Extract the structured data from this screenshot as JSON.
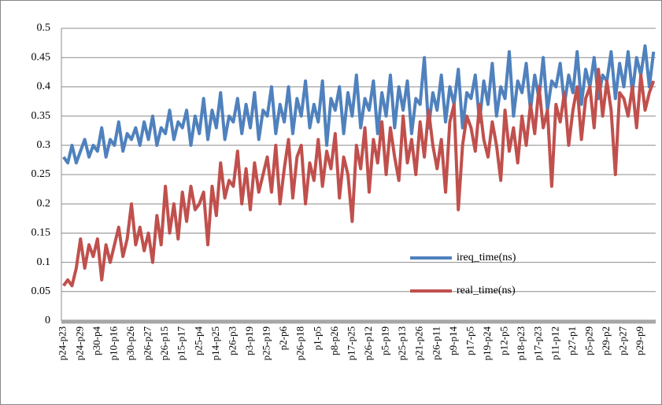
{
  "chart_data": {
    "type": "line",
    "categories": [
      "p24-p23",
      null,
      null,
      null,
      "p24-p29",
      null,
      null,
      null,
      "p30-p4",
      null,
      null,
      null,
      "p10-p16",
      null,
      null,
      null,
      "p30-p26",
      null,
      null,
      null,
      "p26-p27",
      null,
      null,
      null,
      "p26-p15",
      null,
      null,
      null,
      "p15-p17",
      null,
      null,
      null,
      "p25-p4",
      null,
      null,
      null,
      "p14-p25",
      null,
      null,
      null,
      "p26-p3",
      null,
      null,
      null,
      "p3-p19",
      null,
      null,
      null,
      "p25-p19",
      null,
      null,
      null,
      "p2-p6",
      null,
      null,
      null,
      "p26-p18",
      null,
      null,
      null,
      "p1-p5",
      null,
      null,
      null,
      "p8-p26",
      null,
      null,
      null,
      "p17-p25",
      null,
      null,
      null,
      "p26-p12",
      null,
      null,
      null,
      "p5-p19",
      null,
      null,
      null,
      "p25-p13",
      null,
      null,
      null,
      "p21-p26",
      null,
      null,
      null,
      "p26-p11",
      null,
      null,
      null,
      "p9-p14",
      null,
      null,
      null,
      "p17-p5",
      null,
      null,
      null,
      "p19-p24",
      null,
      null,
      null,
      "p12-p5",
      null,
      null,
      null,
      "p18-p23",
      null,
      null,
      null,
      "p17-p23",
      null,
      null,
      null,
      "p11-p12",
      null,
      null,
      null,
      "p27-p1",
      null,
      null,
      null,
      "p5-p29",
      null,
      null,
      null,
      "p29-p2",
      null,
      null,
      null,
      "p2-p27",
      null,
      null,
      null,
      "p29-p9",
      null,
      null,
      null
    ],
    "series": [
      {
        "name": "ireq_time(ns)",
        "color": "#4f81bd",
        "values": [
          0.28,
          0.27,
          0.3,
          0.27,
          0.29,
          0.31,
          0.28,
          0.3,
          0.29,
          0.33,
          0.28,
          0.31,
          0.3,
          0.34,
          0.29,
          0.32,
          0.31,
          0.33,
          0.3,
          0.34,
          0.31,
          0.35,
          0.3,
          0.33,
          0.32,
          0.36,
          0.31,
          0.34,
          0.33,
          0.36,
          0.3,
          0.35,
          0.32,
          0.38,
          0.31,
          0.36,
          0.33,
          0.39,
          0.31,
          0.35,
          0.34,
          0.38,
          0.32,
          0.37,
          0.33,
          0.39,
          0.31,
          0.36,
          0.35,
          0.4,
          0.32,
          0.37,
          0.34,
          0.4,
          0.32,
          0.38,
          0.35,
          0.41,
          0.33,
          0.37,
          0.34,
          0.41,
          0.3,
          0.38,
          0.36,
          0.4,
          0.32,
          0.39,
          0.35,
          0.42,
          0.33,
          0.38,
          0.36,
          0.41,
          0.32,
          0.39,
          0.35,
          0.42,
          0.33,
          0.4,
          0.36,
          0.41,
          0.32,
          0.38,
          0.37,
          0.45,
          0.33,
          0.39,
          0.36,
          0.42,
          0.34,
          0.4,
          0.37,
          0.43,
          0.33,
          0.39,
          0.38,
          0.42,
          0.34,
          0.41,
          0.37,
          0.44,
          0.35,
          0.4,
          0.38,
          0.46,
          0.35,
          0.41,
          0.39,
          0.44,
          0.36,
          0.42,
          0.38,
          0.45,
          0.36,
          0.41,
          0.4,
          0.44,
          0.37,
          0.42,
          0.39,
          0.46,
          0.37,
          0.43,
          0.4,
          0.45,
          0.38,
          0.42,
          0.41,
          0.46,
          0.38,
          0.44,
          0.4,
          0.46,
          0.39,
          0.45,
          0.42,
          0.47,
          0.4,
          0.46
        ]
      },
      {
        "name": "real_time(ns)",
        "color": "#c0504d",
        "values": [
          0.06,
          0.07,
          0.06,
          0.09,
          0.14,
          0.09,
          0.13,
          0.11,
          0.14,
          0.07,
          0.13,
          0.1,
          0.13,
          0.16,
          0.11,
          0.14,
          0.2,
          0.13,
          0.16,
          0.12,
          0.15,
          0.1,
          0.18,
          0.13,
          0.23,
          0.15,
          0.2,
          0.14,
          0.22,
          0.17,
          0.23,
          0.19,
          0.2,
          0.22,
          0.13,
          0.23,
          0.18,
          0.27,
          0.21,
          0.24,
          0.23,
          0.29,
          0.2,
          0.26,
          0.19,
          0.27,
          0.22,
          0.25,
          0.28,
          0.22,
          0.3,
          0.2,
          0.26,
          0.31,
          0.21,
          0.28,
          0.3,
          0.2,
          0.27,
          0.24,
          0.31,
          0.23,
          0.29,
          0.26,
          0.32,
          0.21,
          0.28,
          0.25,
          0.17,
          0.3,
          0.26,
          0.33,
          0.22,
          0.31,
          0.27,
          0.34,
          0.25,
          0.33,
          0.28,
          0.24,
          0.35,
          0.27,
          0.31,
          0.25,
          0.34,
          0.28,
          0.36,
          0.3,
          0.26,
          0.31,
          0.22,
          0.34,
          0.37,
          0.19,
          0.3,
          0.35,
          0.33,
          0.29,
          0.37,
          0.31,
          0.28,
          0.34,
          0.3,
          0.24,
          0.36,
          0.29,
          0.33,
          0.27,
          0.35,
          0.3,
          0.37,
          0.32,
          0.4,
          0.33,
          0.36,
          0.23,
          0.37,
          0.34,
          0.39,
          0.3,
          0.36,
          0.4,
          0.31,
          0.38,
          0.4,
          0.33,
          0.43,
          0.35,
          0.41,
          0.36,
          0.25,
          0.39,
          0.38,
          0.35,
          0.4,
          0.33,
          0.42,
          0.36,
          0.39,
          0.41
        ]
      }
    ],
    "ylim": [
      0,
      0.5
    ],
    "yticks": [
      0,
      0.05,
      0.1,
      0.15,
      0.2,
      0.25,
      0.3,
      0.35,
      0.4,
      0.45,
      0.5
    ],
    "grid": true
  }
}
